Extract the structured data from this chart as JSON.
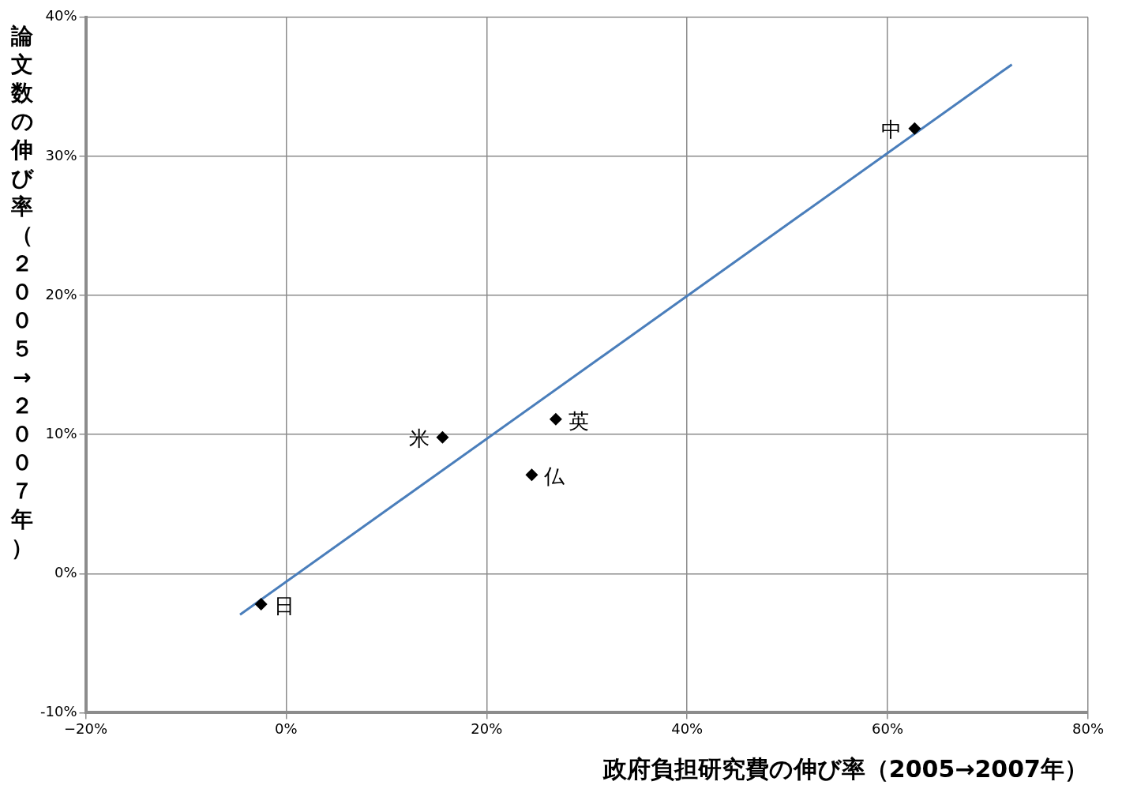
{
  "chart_data": {
    "type": "scatter",
    "xlabel": "政府負担研究費の伸び率（2005→2007年）",
    "ylabel": "論文数の伸び率（２００５→２００７年）",
    "series": [
      {
        "type": "scatter",
        "color": "#000000",
        "marker": "diamond",
        "x": [
          -2.5,
          15.6,
          24.5,
          26.9,
          62.7
        ],
        "values": [
          -2.2,
          9.8,
          7.1,
          11.1,
          32.0
        ]
      },
      {
        "type": "line",
        "color": "#4a7ebb",
        "marker": "none",
        "x": [
          -4.6,
          72.4
        ],
        "values": [
          -2.95,
          36.6
        ]
      }
    ],
    "annotations": [
      {
        "text": "日",
        "x": -2.5,
        "y": -2.2
      },
      {
        "text": "米",
        "x": 15.6,
        "y": 9.8
      },
      {
        "text": "仏",
        "x": 24.5,
        "y": 7.1
      },
      {
        "text": "英",
        "x": 26.9,
        "y": 11.1
      },
      {
        "text": "中",
        "x": 62.7,
        "y": 32.0
      }
    ],
    "xlim": [
      -20,
      80
    ],
    "xticks": [
      {
        "value": -20,
        "label": "−20%"
      },
      {
        "value": 0,
        "label": "0%"
      },
      {
        "value": 20,
        "label": "20%"
      },
      {
        "value": 40,
        "label": "40%"
      },
      {
        "value": 60,
        "label": "60%"
      },
      {
        "value": 80,
        "label": "80%"
      }
    ],
    "ylim": [
      -10,
      40
    ],
    "yticks": [
      {
        "value": -10,
        "label": "-10%"
      },
      {
        "value": 0,
        "label": "0%"
      },
      {
        "value": 10,
        "label": "10%"
      },
      {
        "value": 20,
        "label": "20%"
      },
      {
        "value": 30,
        "label": "30%"
      },
      {
        "value": 40,
        "label": "40%"
      }
    ],
    "grid": true,
    "legend": false
  }
}
